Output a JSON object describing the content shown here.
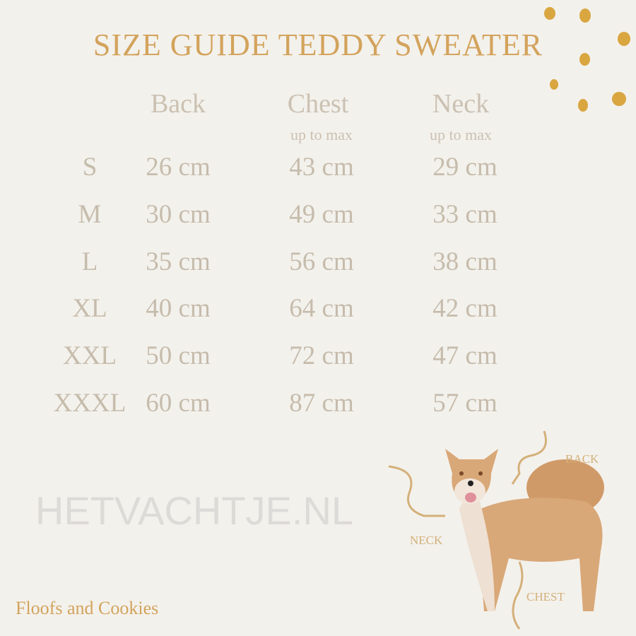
{
  "title": "SIZE GUIDE TEDDY SWEATER",
  "columns": [
    {
      "label": "Back",
      "sub": ""
    },
    {
      "label": "Chest",
      "sub": "up to max"
    },
    {
      "label": "Neck",
      "sub": "up to max"
    }
  ],
  "rows": [
    {
      "size": "S",
      "back": "26 cm",
      "chest": "43 cm",
      "neck": "29 cm"
    },
    {
      "size": "M",
      "back": "30 cm",
      "chest": "49 cm",
      "neck": "33 cm"
    },
    {
      "size": "L",
      "back": "35 cm",
      "chest": "56 cm",
      "neck": "38 cm"
    },
    {
      "size": "XL",
      "back": "40 cm",
      "chest": "64 cm",
      "neck": "42 cm"
    },
    {
      "size": "XXL",
      "back": "50 cm",
      "chest": "72 cm",
      "neck": "47 cm"
    },
    {
      "size": "XXXL",
      "back": "60 cm",
      "chest": "87 cm",
      "neck": "57 cm"
    }
  ],
  "watermark": "HETVACHTJE.NL",
  "brand": "Floofs and Cookies",
  "diagram_labels": {
    "back": "BACK",
    "neck": "NECK",
    "chest": "CHEST"
  },
  "colors": {
    "background": "#f3f1ec",
    "accent": "#d3a35c",
    "text": "#c6bcac"
  }
}
